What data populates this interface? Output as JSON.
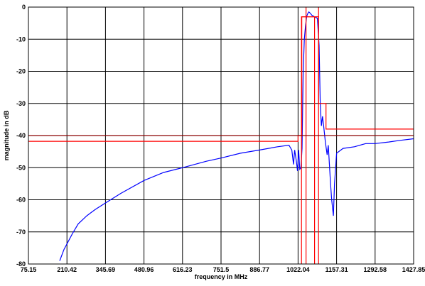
{
  "chart_data": {
    "type": "line",
    "title": "",
    "xlabel": "frequency in MHz",
    "ylabel": "magnitude in dB",
    "xlim": [
      75.15,
      1427.85
    ],
    "ylim": [
      -80,
      0
    ],
    "x_ticks": [
      75.15,
      210.42,
      345.69,
      480.96,
      616.23,
      751.5,
      886.77,
      1022.04,
      1157.31,
      1292.58,
      1427.85
    ],
    "x_tick_labels": [
      "75.15",
      "210.42",
      "345.69",
      "480.96",
      "616.23",
      "751.5",
      "886.77",
      "1022.04",
      "1157.31",
      "1292.58",
      "1427.85"
    ],
    "y_ticks": [
      0,
      -10,
      -20,
      -30,
      -40,
      -50,
      -60,
      -70,
      -80
    ],
    "y_tick_labels": [
      "0",
      "-10",
      "-20",
      "-30",
      "-40",
      "-50",
      "-60",
      "-70",
      "-80"
    ],
    "grid": true,
    "legend": "none",
    "series": [
      {
        "color": "#0000ff",
        "x": [
          185,
          200,
          215,
          230,
          250,
          280,
          310,
          345.69,
          400,
          480.96,
          550,
          616.23,
          700,
          751.5,
          820,
          886.77,
          950,
          990,
          1000,
          1006,
          1010,
          1016,
          1020,
          1024,
          1028,
          1032,
          1036,
          1040,
          1044,
          1048,
          1052,
          1056,
          1060,
          1066,
          1070,
          1080,
          1090,
          1096,
          1100,
          1104,
          1108,
          1112,
          1118,
          1124,
          1128,
          1132,
          1136,
          1140,
          1146,
          1150,
          1157.31,
          1180,
          1220,
          1260,
          1292.58,
          1340,
          1380,
          1427.85
        ],
        "y": [
          -79,
          -75.5,
          -73,
          -70.5,
          -67.5,
          -65,
          -63,
          -61,
          -58,
          -54,
          -51.5,
          -50,
          -48,
          -47,
          -45.5,
          -44.5,
          -43.5,
          -43,
          -44.5,
          -49,
          -44.5,
          -48,
          -51,
          -44.5,
          -50.5,
          -50,
          -44,
          -20,
          -10,
          -6,
          -3,
          -2,
          -1.5,
          -2,
          -2.5,
          -3,
          -3.5,
          -12,
          -30,
          -37,
          -34,
          -37,
          -42,
          -46,
          -43,
          -49,
          -55,
          -60,
          -65,
          -55,
          -45.5,
          -44,
          -43.5,
          -42.5,
          -42.5,
          -42,
          -41.5,
          -41
        ]
      },
      {
        "color": "#ff0000",
        "x": [
          75.15,
          1022.04,
          1022.04,
          1035,
          1035,
          1080,
          1080,
          1094,
          1094,
          1120,
          1120,
          1427.85
        ],
        "y": [
          -41.8,
          -41.8,
          -40,
          -40,
          -3,
          -3,
          -3,
          -3,
          -30,
          -30,
          -38,
          -38
        ]
      },
      {
        "color": "#ff0000",
        "x": [
          1034,
          1034,
          1080,
          1080
        ],
        "y": [
          -80,
          -3,
          -3,
          -80
        ]
      },
      {
        "color": "#ff0000",
        "x": [
          1050,
          1050
        ],
        "y": [
          -80,
          0
        ]
      },
      {
        "color": "#ff0000",
        "x": [
          1094,
          1094
        ],
        "y": [
          -80,
          0
        ]
      },
      {
        "color": "#8b0000",
        "x": [
          75.15,
          1427.85
        ],
        "y": [
          -40,
          -40
        ]
      }
    ]
  }
}
